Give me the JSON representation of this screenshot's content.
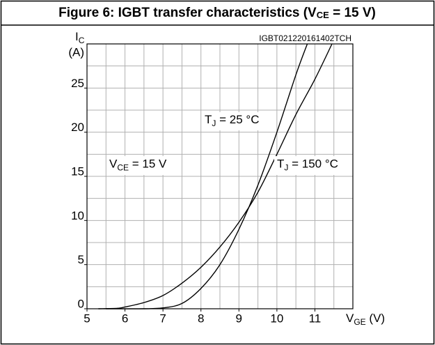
{
  "chart_data": {
    "type": "line",
    "title": {
      "main": "Figure 6: IGBT transfer characteristics (V",
      "sub": "CE",
      "rest": " = 15 V)"
    },
    "watermark": "IGBT021220161402TCH",
    "y_label": {
      "main": "I",
      "sub": "C",
      "unit": "(A)"
    },
    "x_label": {
      "main": "V",
      "sub": "GE",
      "rest": " (V)"
    },
    "xlim": [
      5,
      12
    ],
    "ylim": [
      0,
      30
    ],
    "xticks": [
      5,
      6,
      7,
      8,
      9,
      10,
      11
    ],
    "yticks": [
      0,
      5,
      10,
      15,
      20,
      25
    ],
    "x_minor_step": 0.5,
    "y_minor_step": 2.5,
    "grid": true,
    "annotations": [
      {
        "main": "T",
        "sub": "J",
        "rest": " = 25 °C"
      },
      {
        "main": "V",
        "sub": "CE",
        "rest": " = 15 V"
      },
      {
        "main": "T",
        "sub": "J",
        "rest": " = 150 °C"
      }
    ],
    "series": [
      {
        "name": "T_J = 25 °C",
        "color": "#000000",
        "x": [
          5.5,
          6.5,
          7,
          7.5,
          8,
          8.5,
          9,
          9.5,
          10,
          10.5,
          10.8
        ],
        "values": [
          0,
          0,
          0.1,
          0.6,
          2.3,
          5,
          9,
          14,
          20,
          26.5,
          30
        ]
      },
      {
        "name": "T_J = 150 °C",
        "color": "#000000",
        "x": [
          5.3,
          5.8,
          6,
          6.5,
          7,
          7.5,
          8,
          8.5,
          9,
          9.5,
          10,
          10.5,
          11,
          11.45
        ],
        "values": [
          0,
          0.05,
          0.2,
          0.7,
          1.5,
          2.9,
          4.7,
          7,
          9.8,
          13.2,
          17.5,
          22,
          26,
          30
        ]
      }
    ]
  }
}
